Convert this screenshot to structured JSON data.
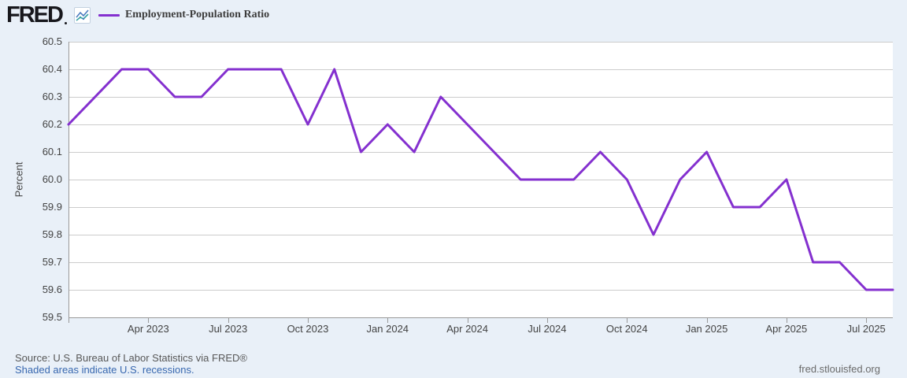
{
  "header": {
    "logo_text": "FRED",
    "legend": {
      "label": "Employment-Population Ratio"
    }
  },
  "chart_data": {
    "type": "line",
    "title": "Employment-Population Ratio",
    "ylabel": "Percent",
    "ylim": [
      59.5,
      60.5
    ],
    "yticks": [
      60.5,
      60.4,
      60.3,
      60.2,
      60.1,
      60.0,
      59.9,
      59.8,
      59.7,
      59.6,
      59.5
    ],
    "x": [
      "Jan 2023",
      "Feb 2023",
      "Mar 2023",
      "Apr 2023",
      "May 2023",
      "Jun 2023",
      "Jul 2023",
      "Aug 2023",
      "Sep 2023",
      "Oct 2023",
      "Nov 2023",
      "Dec 2023",
      "Jan 2024",
      "Feb 2024",
      "Mar 2024",
      "Apr 2024",
      "May 2024",
      "Jun 2024",
      "Jul 2024",
      "Aug 2024",
      "Sep 2024",
      "Oct 2024",
      "Nov 2024",
      "Dec 2024",
      "Jan 2025",
      "Feb 2025",
      "Mar 2025",
      "Apr 2025",
      "May 2025",
      "Jun 2025",
      "Jul 2025",
      "Aug 2025"
    ],
    "values": [
      60.2,
      60.3,
      60.4,
      60.4,
      60.3,
      60.3,
      60.4,
      60.4,
      60.4,
      60.2,
      60.4,
      60.1,
      60.2,
      60.1,
      60.3,
      60.2,
      60.1,
      60.0,
      60.0,
      60.0,
      60.1,
      60.0,
      59.8,
      60.0,
      60.1,
      59.9,
      59.9,
      60.0,
      59.7,
      59.7,
      59.6,
      59.6
    ],
    "xtick_labels": [
      "Apr 2023",
      "Jul 2023",
      "Oct 2023",
      "Jan 2024",
      "Apr 2024",
      "Jul 2024",
      "Oct 2024",
      "Jan 2025",
      "Apr 2025",
      "Jul 2025"
    ],
    "series_color": "#8430cf",
    "grid": true,
    "legend_position": "top-left"
  },
  "footer": {
    "source_text": "Source: U.S. Bureau of Labor Statistics via FRED®",
    "recession_note": "Shaded areas indicate U.S. recessions.",
    "site_link": "fred.stlouisfed.org"
  },
  "colors": {
    "background": "#e9f0f8",
    "plot_background": "#ffffff",
    "gridline": "#cccccc",
    "axis": "#999999",
    "series": "#8430cf",
    "icon_line_blue": "#4b7bbf",
    "icon_line_teal": "#38a3a5",
    "label_text": "#434343",
    "source_text": "#585858",
    "link": "#3767af"
  }
}
